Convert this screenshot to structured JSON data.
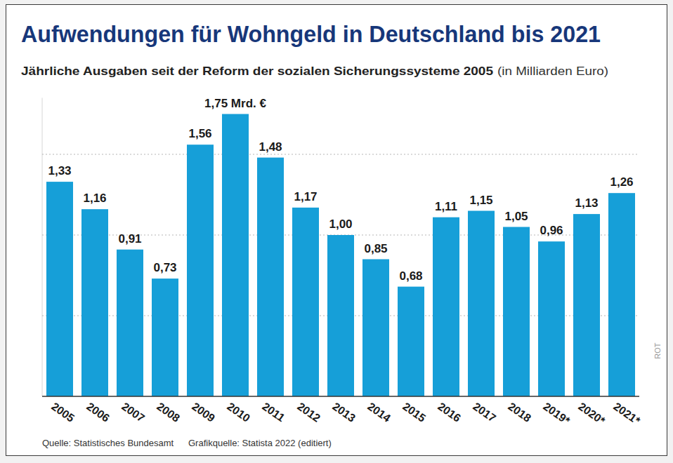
{
  "chart_data": {
    "type": "bar",
    "title": "Aufwendungen für Wohngeld in Deutschland bis 2021",
    "subtitle": "Jährliche Ausgaben seit der Reform der sozialen Sicherungssysteme 2005",
    "subtitle_unit": "(in Milliarden Euro)",
    "source": "Quelle: Statistisches Bundesamt",
    "graphic_source": "Grafikquelle: Statista 2022 (editiert)",
    "credit": "ROT",
    "categories": [
      "2005",
      "2006",
      "2007",
      "2008",
      "2009",
      "2010",
      "2011",
      "2012",
      "2013",
      "2014",
      "2015",
      "2016",
      "2017",
      "2018",
      "2019*",
      "2020*",
      "2021*"
    ],
    "values": [
      1.33,
      1.16,
      0.91,
      0.73,
      1.56,
      1.75,
      1.48,
      1.17,
      1.0,
      0.85,
      0.68,
      1.11,
      1.15,
      1.05,
      0.96,
      1.13,
      1.26
    ],
    "value_labels": [
      "1,33",
      "1,16",
      "0,91",
      "0,73",
      "1,56",
      "1,75 Mrd. €",
      "1,48",
      "1,17",
      "1,00",
      "0,85",
      "0,68",
      "1,11",
      "1,15",
      "1,05",
      "0,96",
      "1,13",
      "1,26"
    ],
    "color": "#169fd8",
    "ylim": [
      0,
      1.85
    ],
    "yticks": [
      0,
      0.5,
      1,
      1.5
    ],
    "grid": true,
    "data_labels": true,
    "tick_labels": "x"
  }
}
